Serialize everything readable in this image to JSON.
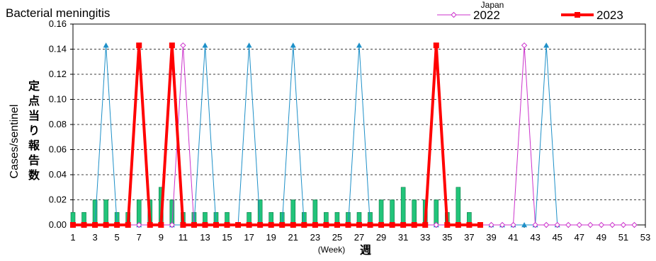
{
  "chart_data": {
    "type": "line",
    "title": "Bacterial meningitis",
    "legend_title": "Japan",
    "ylabel": "Cases/sentinel",
    "ylabel_ja": "定点当り報告数",
    "xlabel": "(Week)",
    "xlabel_ja": "週",
    "ylim": [
      0,
      0.16
    ],
    "yticks": [
      "0.00",
      "0.02",
      "0.04",
      "0.06",
      "0.08",
      "0.10",
      "0.12",
      "0.14",
      "0.16"
    ],
    "xlim": [
      1,
      53
    ],
    "xticks": [
      "1",
      "3",
      "5",
      "7",
      "9",
      "11",
      "13",
      "15",
      "17",
      "19",
      "21",
      "23",
      "25",
      "27",
      "29",
      "31",
      "33",
      "35",
      "37",
      "39",
      "41",
      "43",
      "45",
      "47",
      "49",
      "51",
      "53"
    ],
    "grid": "horizontal dashed",
    "legend_position": "top-right",
    "colors": {
      "bars": "#22c47a",
      "bars_edge": "#0a7a45",
      "blue_line": "#1e90c8",
      "series_2022": "#cc33cc",
      "series_2023": "#ff0000"
    },
    "bars": {
      "x": [
        1,
        2,
        3,
        4,
        5,
        6,
        7,
        8,
        9,
        10,
        11,
        12,
        13,
        14,
        15,
        16,
        17,
        18,
        19,
        20,
        21,
        22,
        23,
        24,
        25,
        26,
        27,
        28,
        29,
        30,
        31,
        32,
        33,
        34,
        35,
        36,
        37
      ],
      "values": [
        0.01,
        0.01,
        0.02,
        0.02,
        0.01,
        0.01,
        0.02,
        0.02,
        0.03,
        0.02,
        0.01,
        0.01,
        0.01,
        0.01,
        0.01,
        0.0,
        0.01,
        0.02,
        0.01,
        0.01,
        0.02,
        0.01,
        0.02,
        0.01,
        0.01,
        0.01,
        0.01,
        0.01,
        0.02,
        0.02,
        0.03,
        0.02,
        0.02,
        0.02,
        0.01,
        0.03,
        0.01
      ]
    },
    "blue_line": {
      "x": [
        1,
        2,
        3,
        4,
        5,
        6,
        7,
        8,
        9,
        10,
        11,
        12,
        13,
        14,
        15,
        16,
        17,
        18,
        19,
        20,
        21,
        22,
        23,
        24,
        25,
        26,
        27,
        28,
        29,
        30,
        31,
        32,
        33,
        34,
        35,
        36,
        37,
        38,
        39,
        40,
        41,
        42,
        43,
        44,
        45
      ],
      "values": [
        0,
        0,
        0,
        0.143,
        0,
        0,
        0,
        0,
        0,
        0,
        0,
        0,
        0.143,
        0,
        0,
        0,
        0.143,
        0,
        0,
        0,
        0.143,
        0,
        0,
        0,
        0,
        0,
        0.143,
        0,
        0,
        0,
        0,
        0,
        0,
        0,
        0,
        0,
        0,
        0,
        0,
        0,
        0,
        0,
        0,
        0.143,
        0
      ]
    },
    "series": [
      {
        "name": "2022",
        "x": [
          1,
          2,
          3,
          4,
          5,
          6,
          7,
          8,
          9,
          10,
          11,
          12,
          13,
          14,
          15,
          16,
          17,
          18,
          19,
          20,
          21,
          22,
          23,
          24,
          25,
          26,
          27,
          28,
          29,
          30,
          31,
          32,
          33,
          34,
          35,
          36,
          37,
          38,
          39,
          40,
          41,
          42,
          43,
          44,
          45,
          46,
          47,
          48,
          49,
          50,
          51,
          52
        ],
        "values": [
          0,
          0,
          0,
          0,
          0,
          0,
          0,
          0,
          0,
          0,
          0.143,
          0,
          0,
          0,
          0,
          0,
          0,
          0,
          0,
          0,
          0,
          0,
          0,
          0,
          0,
          0,
          0,
          0,
          0,
          0,
          0,
          0,
          0,
          0,
          0,
          0,
          0,
          0,
          0,
          0,
          0,
          0.143,
          0,
          0,
          0,
          0,
          0,
          0,
          0,
          0,
          0,
          0
        ]
      },
      {
        "name": "2023",
        "x": [
          1,
          2,
          3,
          4,
          5,
          6,
          7,
          8,
          9,
          10,
          11,
          12,
          13,
          14,
          15,
          16,
          17,
          18,
          19,
          20,
          21,
          22,
          23,
          24,
          25,
          26,
          27,
          28,
          29,
          30,
          31,
          32,
          33,
          34,
          35,
          36,
          37,
          38
        ],
        "values": [
          0,
          0,
          0,
          0,
          0,
          0,
          0.143,
          0,
          0,
          0.143,
          0,
          0,
          0,
          0,
          0,
          0,
          0,
          0,
          0,
          0,
          0,
          0,
          0,
          0,
          0,
          0,
          0,
          0,
          0,
          0,
          0,
          0,
          0,
          0.143,
          0,
          0,
          0,
          0
        ]
      }
    ]
  }
}
